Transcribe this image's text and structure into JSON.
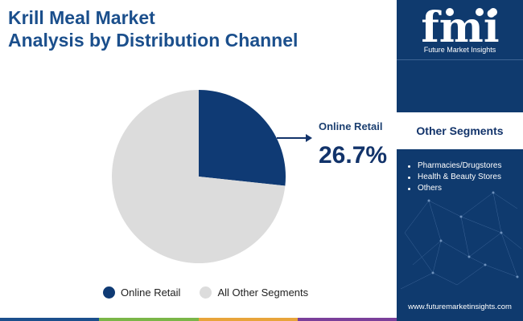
{
  "title": {
    "line1": "Krill Meal Market",
    "line2": "Analysis by Distribution Channel"
  },
  "chart_data": {
    "type": "pie",
    "title": "Krill Meal Market Analysis by Distribution Channel",
    "slices": [
      {
        "name": "Online Retail",
        "value": 26.7,
        "color": "#0f3a74"
      },
      {
        "name": "All Other Segments",
        "value": 73.3,
        "color": "#dcdcdc"
      }
    ],
    "highlight": {
      "label": "Online Retail",
      "value_text": "26.7%"
    },
    "legend": [
      "Online Retail",
      "All Other Segments"
    ],
    "legend_position": "bottom"
  },
  "side_panel": {
    "logo_letters": "fmi",
    "logo_text": "Future Market Insights",
    "segments_title": "Other Segments",
    "segments": [
      "Pharmacies/Drugstores",
      "Health & Beauty Stores",
      "Others"
    ],
    "website": "www.futuremarketinsights.com",
    "background_color": "#0f3a6e"
  },
  "bottom_bar_colors": [
    "#1b4f8c",
    "#7ab648",
    "#e8a43a",
    "#7a3f9a"
  ]
}
